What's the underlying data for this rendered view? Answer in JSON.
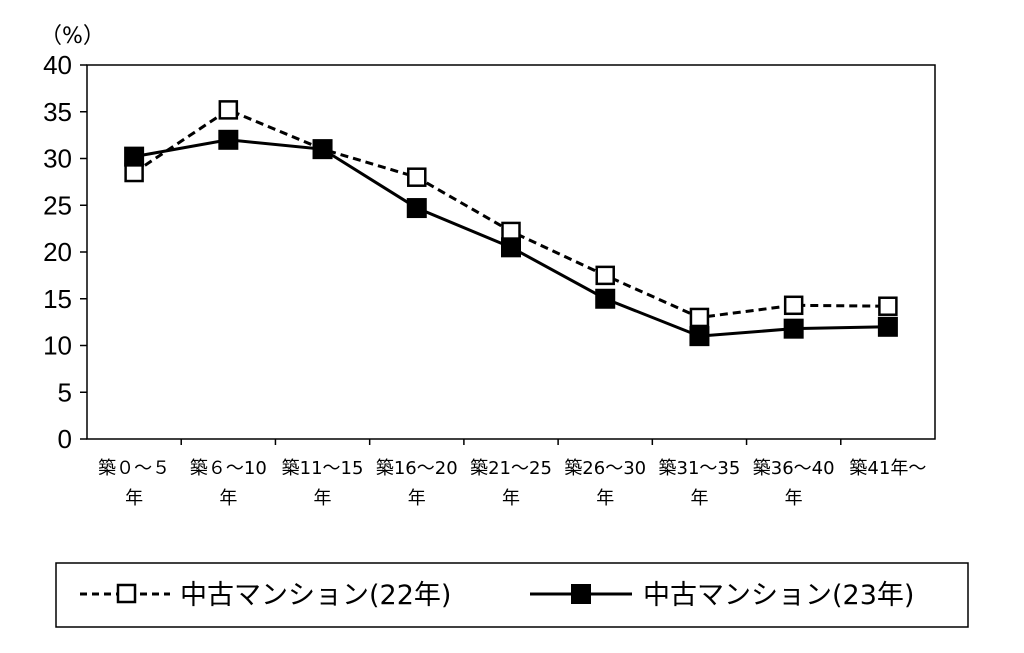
{
  "chart_data": {
    "type": "line",
    "y_unit_label": "（%）",
    "ylim": [
      0,
      40
    ],
    "y_ticks": [
      "0",
      "5",
      "10",
      "15",
      "20",
      "25",
      "30",
      "35",
      "40"
    ],
    "categories": [
      [
        "築０～５",
        "年"
      ],
      [
        "築６～10",
        "年"
      ],
      [
        "築11～15",
        "年"
      ],
      [
        "築16～20",
        "年"
      ],
      [
        "築21～25",
        "年"
      ],
      [
        "築26～30",
        "年"
      ],
      [
        "築31～35",
        "年"
      ],
      [
        "築36～40",
        "年"
      ],
      [
        "築41年～"
      ]
    ],
    "series": [
      {
        "name": "中古マンション(22年)",
        "values": [
          28.5,
          35.2,
          31.0,
          28.0,
          22.2,
          17.5,
          13.0,
          14.3,
          14.2
        ],
        "style": "dashed",
        "marker": "open-square",
        "color": "#000000"
      },
      {
        "name": "中古マンション(23年)",
        "values": [
          30.2,
          32.0,
          31.0,
          24.7,
          20.5,
          15.0,
          11.0,
          11.8,
          12.0
        ],
        "style": "solid",
        "marker": "filled-square",
        "color": "#000000"
      }
    ],
    "grid": false,
    "legend_position": "bottom"
  }
}
